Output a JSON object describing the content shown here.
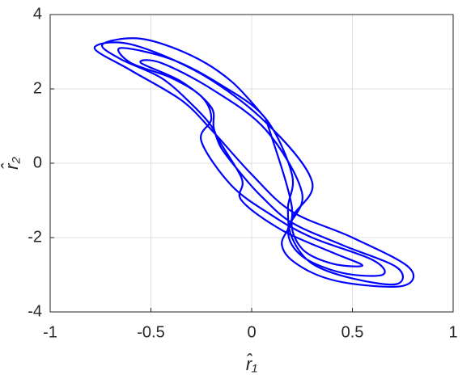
{
  "chart_data": {
    "type": "line",
    "x_label": "r̂₁",
    "y_label": "r̂₂",
    "xlim": [
      -1,
      1
    ],
    "xticks": [
      -1,
      -0.5,
      0,
      0.5,
      1
    ],
    "ylim": [
      -4,
      4
    ],
    "yticks": [
      -4,
      -2,
      0,
      2,
      4
    ],
    "grid": true,
    "color": "#0000ff",
    "x": [
      0.07,
      -0.1,
      -0.3,
      -0.55,
      -0.74,
      -0.65,
      -0.45,
      -0.3,
      -0.2,
      -0.15,
      -0.05,
      0.05,
      0.2,
      0.45,
      0.72,
      0.72,
      0.5,
      0.3,
      0.2,
      0.18,
      0.2,
      0.07,
      -0.15,
      -0.4,
      -0.65,
      -0.6,
      -0.4,
      -0.25,
      -0.2,
      -0.25,
      -0.1,
      0.1,
      0.3,
      0.6,
      0.65,
      0.45,
      0.25,
      0.18,
      0.25,
      0.07,
      -0.2,
      -0.45,
      -0.55,
      -0.35,
      -0.2,
      -0.18,
      -0.05,
      -0.05,
      0.15,
      0.4,
      0.55,
      0.4,
      0.25,
      0.2,
      0.3,
      0.07,
      -0.25,
      -0.6,
      -0.78,
      -0.6,
      -0.35,
      -0.2,
      0.0,
      0.2,
      0.5,
      0.78,
      0.75,
      0.45,
      0.25,
      0.15,
      0.2,
      0.07
    ],
    "values": [
      1.2,
      2.2,
      2.9,
      3.35,
      3.2,
      2.8,
      2.3,
      1.6,
      1.0,
      0.4,
      -0.3,
      -0.9,
      -1.6,
      -2.2,
      -2.8,
      -3.25,
      -3.1,
      -2.7,
      -2.0,
      -1.2,
      -0.3,
      1.2,
      2.1,
      2.8,
      3.1,
      2.7,
      2.3,
      1.8,
      1.2,
      0.6,
      -0.6,
      -1.4,
      -2.0,
      -2.6,
      -3.0,
      -2.95,
      -2.5,
      -1.8,
      -0.8,
      0.9,
      2.0,
      2.7,
      2.7,
      2.2,
      1.5,
      0.8,
      -0.4,
      -1.0,
      -1.8,
      -2.4,
      -2.75,
      -2.7,
      -2.3,
      -1.5,
      -0.5,
      1.1,
      2.4,
      3.2,
      3.1,
      2.5,
      1.7,
      0.9,
      -0.3,
      -1.3,
      -2.0,
      -2.8,
      -3.3,
      -3.2,
      -2.8,
      -2.2,
      -1.2,
      1.2
    ]
  }
}
